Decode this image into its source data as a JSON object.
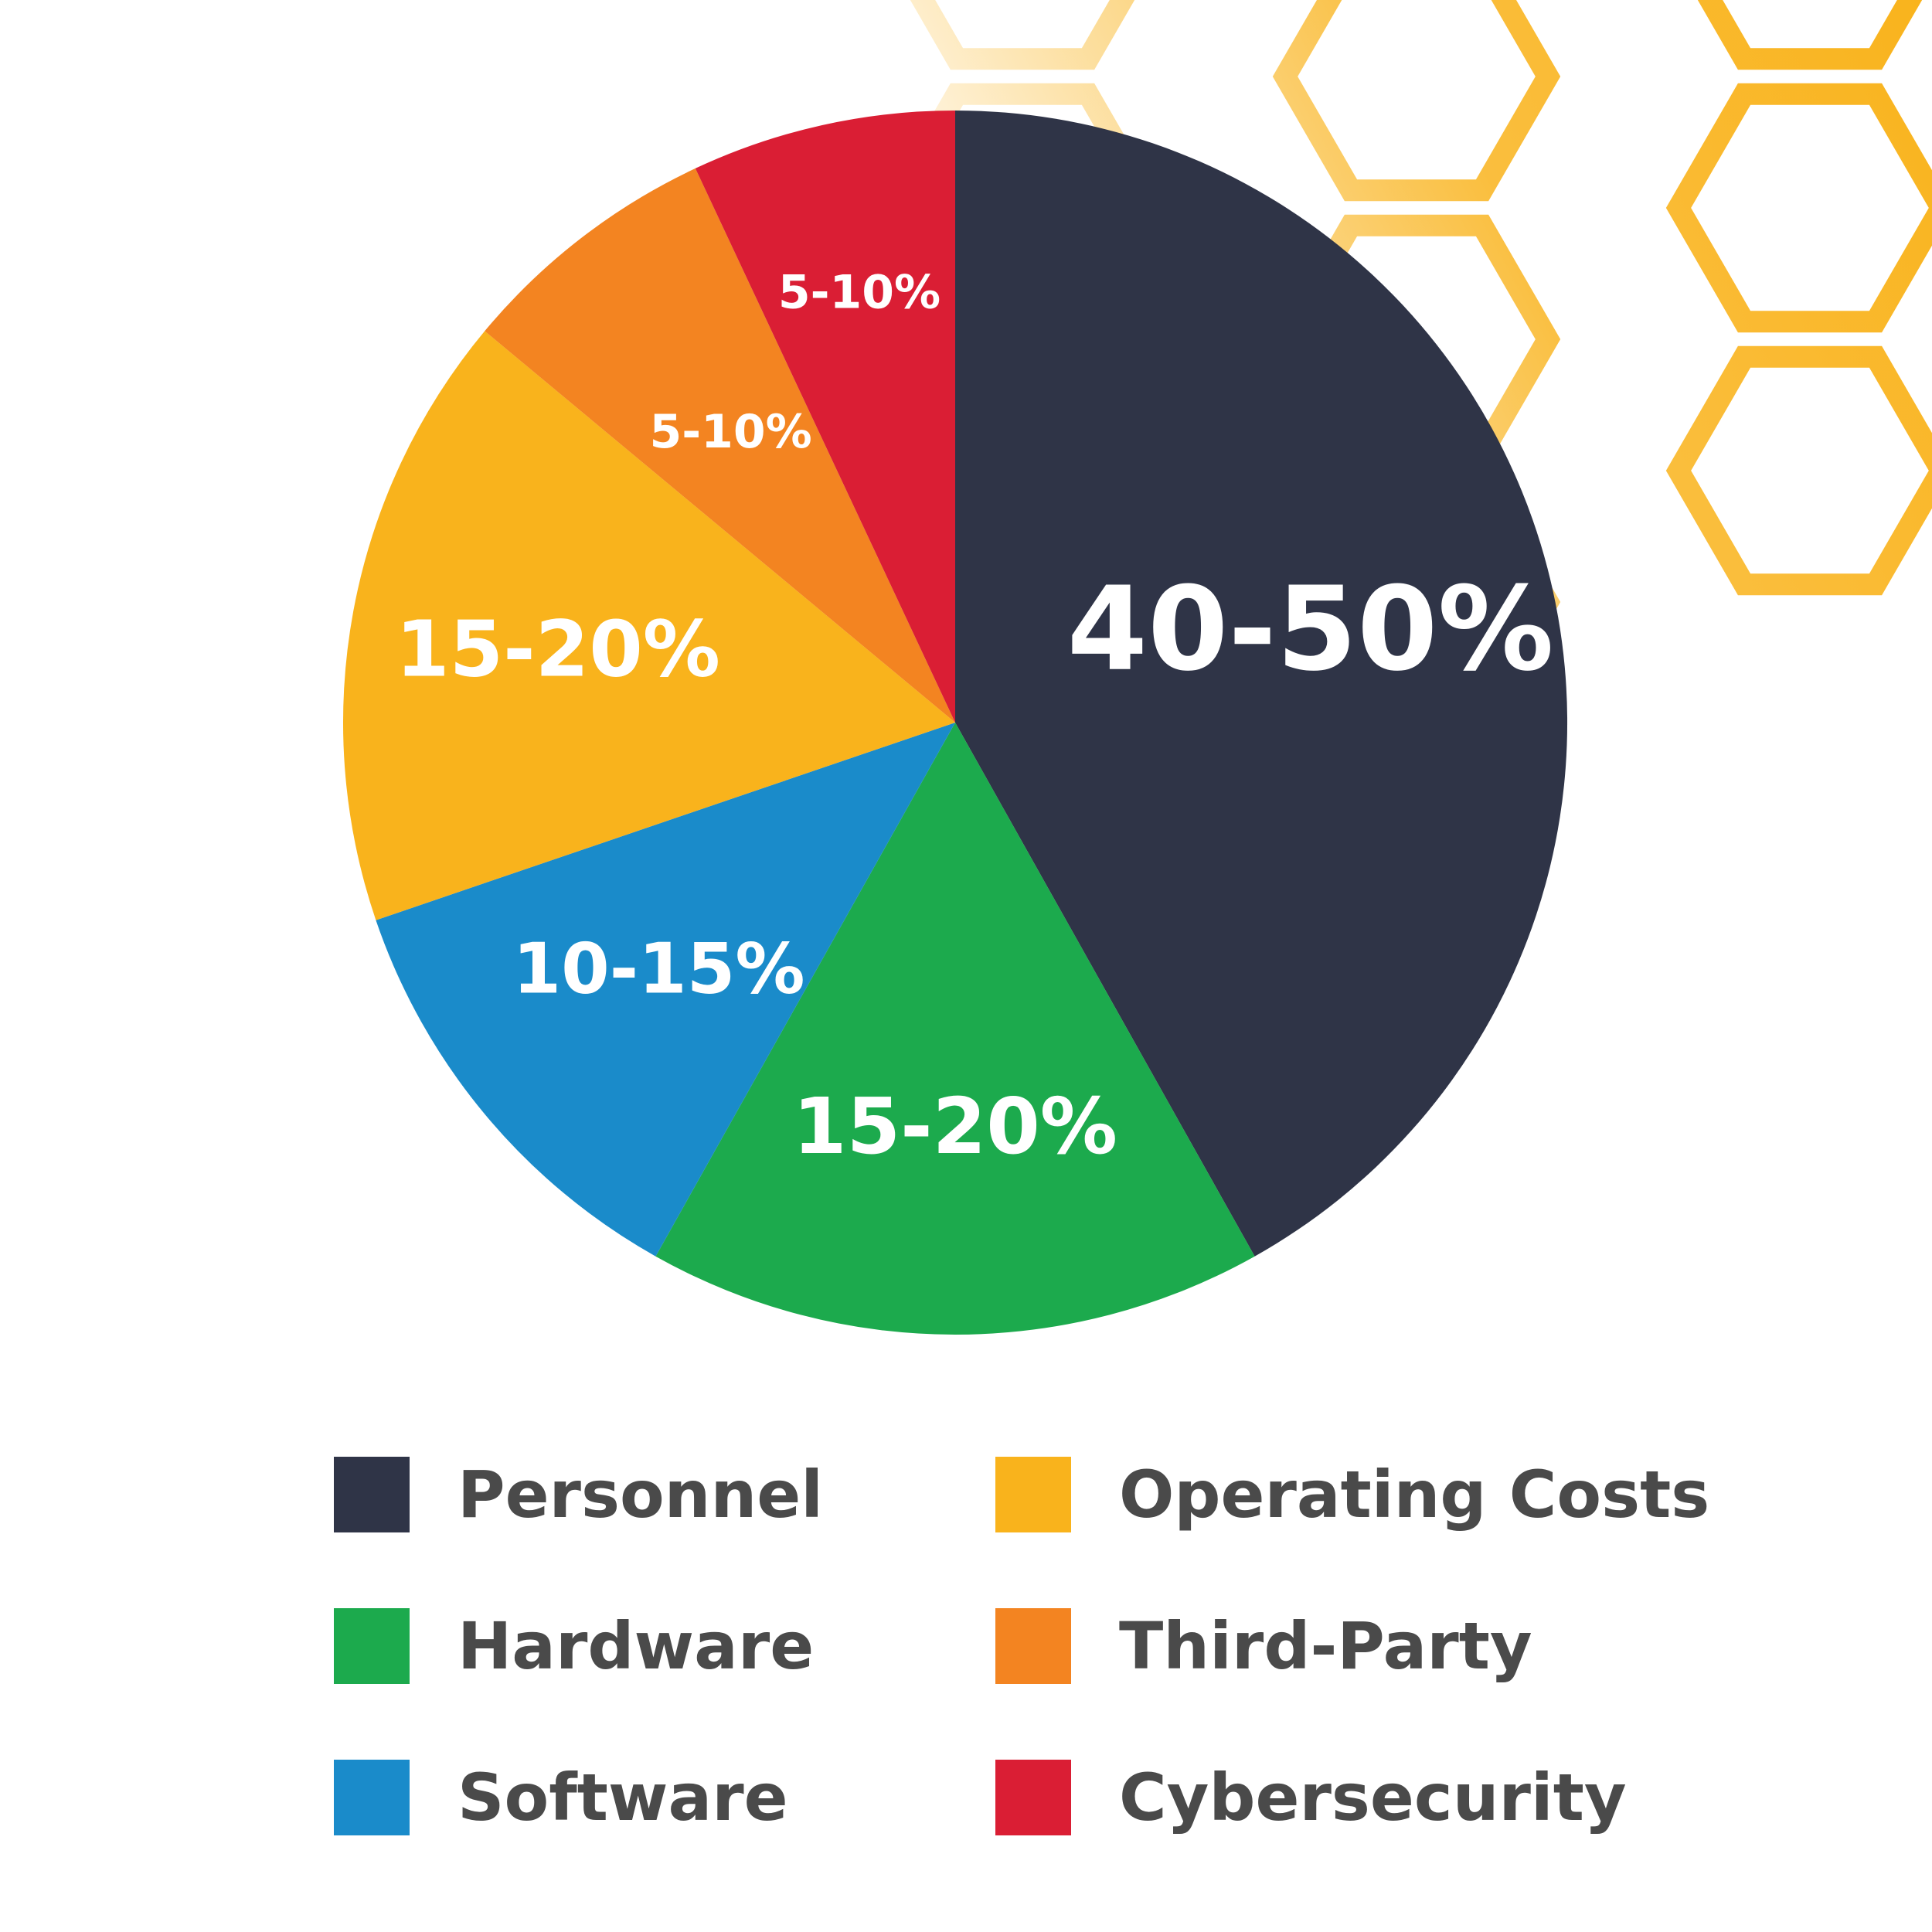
{
  "chart_data": {
    "type": "pie",
    "title": "",
    "slices": [
      {
        "name": "Personnel",
        "range": [
          40,
          50
        ],
        "label": "40-50%",
        "color": "#2f3447"
      },
      {
        "name": "Hardware",
        "range": [
          15,
          20
        ],
        "label": "15-20%",
        "color": "#1caa4d"
      },
      {
        "name": "Software",
        "range": [
          10,
          15
        ],
        "label": "10-15%",
        "color": "#1a8bca"
      },
      {
        "name": "Operating Costs",
        "range": [
          15,
          20
        ],
        "label": "15-20%",
        "color": "#f9b31c"
      },
      {
        "name": "Third-Party",
        "range": [
          5,
          10
        ],
        "label": "5-10%",
        "color": "#f38421"
      },
      {
        "name": "Cybersecurity",
        "range": [
          5,
          10
        ],
        "label": "5-10%",
        "color": "#da1e34"
      }
    ],
    "legend": {
      "placement": "bottom",
      "columns": [
        [
          "Personnel",
          "Hardware",
          "Software"
        ],
        [
          "Operating Costs",
          "Third-Party",
          "Cybersecurity"
        ]
      ]
    }
  },
  "colors": {
    "legend_text": "#4a4a4a",
    "pattern": "#f9b31c",
    "background": "#ffffff"
  }
}
